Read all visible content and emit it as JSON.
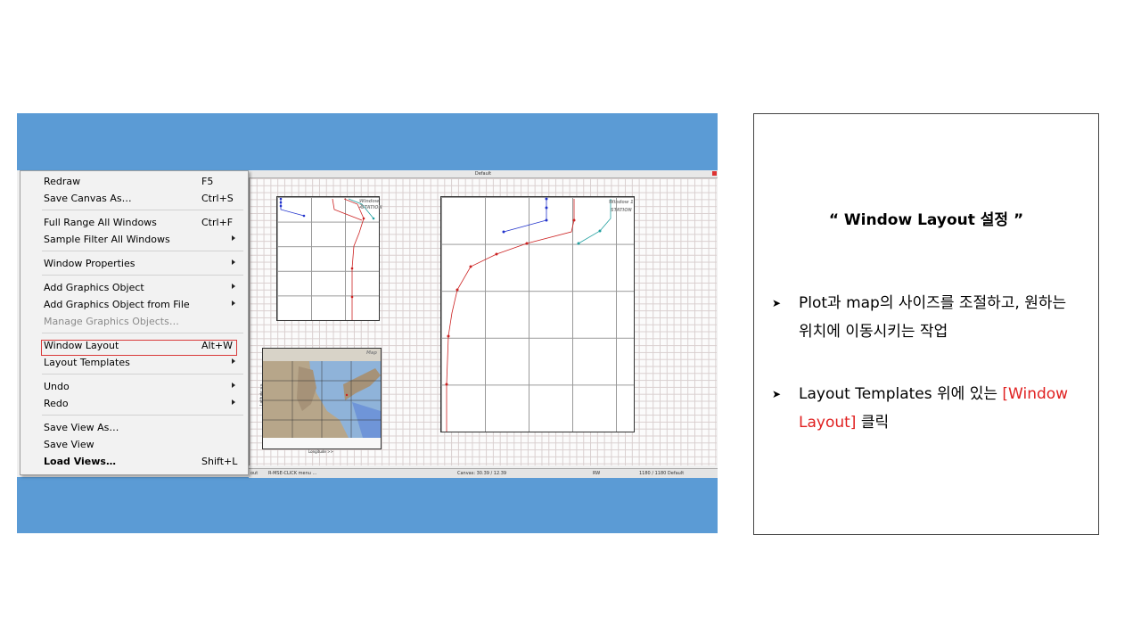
{
  "menu": {
    "items": [
      {
        "label": "Redraw",
        "shortcut": "F5",
        "submenu": false
      },
      {
        "label": "Save Canvas As…",
        "shortcut": "Ctrl+S",
        "submenu": false
      },
      {
        "label": "Full Range All Windows",
        "shortcut": "Ctrl+F",
        "submenu": false
      },
      {
        "label": "Sample Filter All Windows",
        "shortcut": "",
        "submenu": true
      },
      {
        "label": "Window Properties",
        "shortcut": "",
        "submenu": true
      },
      {
        "label": "Add Graphics Object",
        "shortcut": "",
        "submenu": true
      },
      {
        "label": "Add Graphics Object from File",
        "shortcut": "",
        "submenu": true
      },
      {
        "label": "Manage Graphics Objects…",
        "shortcut": "",
        "submenu": false,
        "disabled": true
      },
      {
        "label": "Window Layout",
        "shortcut": "Alt+W",
        "submenu": false,
        "highlighted": true
      },
      {
        "label": "Layout Templates",
        "shortcut": "",
        "submenu": true
      },
      {
        "label": "Undo",
        "shortcut": "",
        "submenu": true
      },
      {
        "label": "Redo",
        "shortcut": "",
        "submenu": true
      },
      {
        "label": "Save View As…",
        "shortcut": "",
        "submenu": false
      },
      {
        "label": "Save View",
        "shortcut": "",
        "submenu": false
      },
      {
        "label": "Load Views…",
        "shortcut": "Shift+L",
        "submenu": false,
        "bold": true
      }
    ]
  },
  "canvas": {
    "title": "Default",
    "windows": {
      "window2_label": "Window 2",
      "window2_station": "STATION",
      "window1_label": "Window 1",
      "window1_station": "STATION",
      "map_label": "Map",
      "map_xlabel": "Longitude >>",
      "map_ylabel": "Latitude >>"
    },
    "status": {
      "left": "out",
      "hint": "R-MSE-CLICK menu ...",
      "canvas": "Canvas: 30.39 / 12.39",
      "rw": "RW",
      "right": "1180 / 1180 Default"
    }
  },
  "panel": {
    "title": "“ Window Layout 설정 ”",
    "bullets": [
      {
        "text": "Plot과 map의 사이즈를 조절하고, 원하는 위치에 이동시키는 작업"
      },
      {
        "text_before": "Layout Templates 위에 있는 ",
        "text_red": "[Window Layout]",
        "text_after": " 클릭"
      }
    ],
    "accent_color": "#e02020",
    "bullet_icon": "arrow-bullet-icon"
  },
  "colors": {
    "banner": "#5b9bd5",
    "highlight_box": "#d93a3a"
  }
}
